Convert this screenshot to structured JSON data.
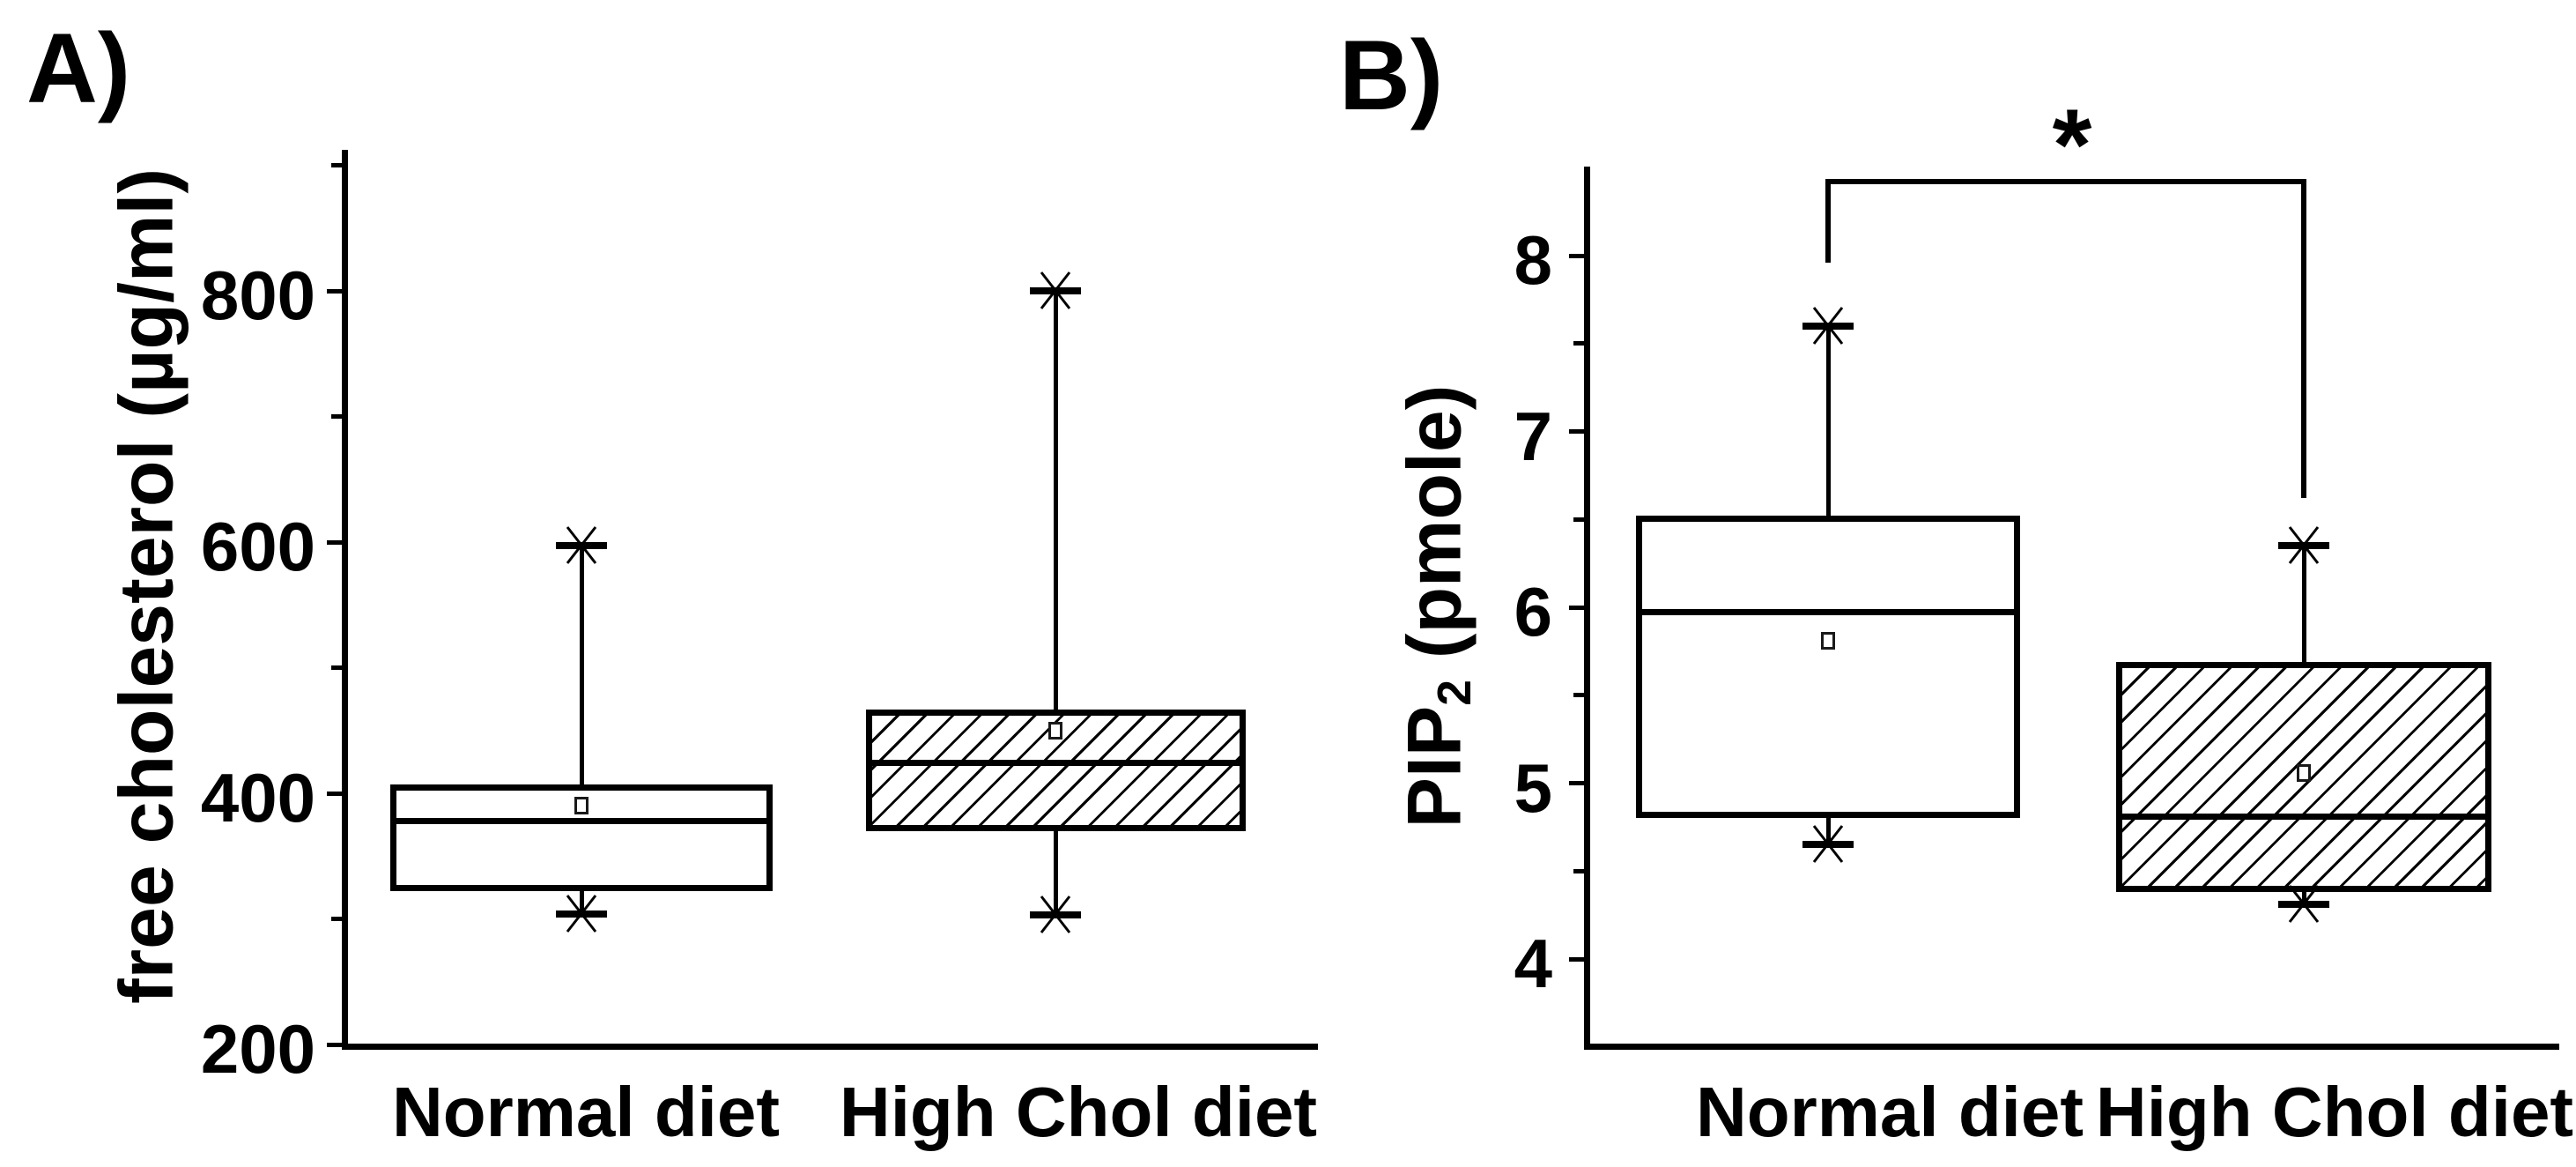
{
  "chart_data": [
    {
      "type": "box",
      "panel_label": "A)",
      "ylabel": "free cholesterol (µg/ml)",
      "ylabel_parts": {
        "pre": "free cholesterol (µg/ml)",
        "sub": "",
        "post": ""
      },
      "ylim": [
        200,
        912
      ],
      "yticks_major": [
        200,
        400,
        600,
        800
      ],
      "yticks_minor": [
        300,
        500,
        700,
        900
      ],
      "grid": false,
      "categories": [
        "Normal diet",
        "High Chol diet"
      ],
      "series": [
        {
          "category": "Normal diet",
          "hatched": false,
          "whisker_low": 304,
          "q1": 322,
          "median": 378,
          "mean": 390,
          "q3": 407,
          "whisker_high": 597
        },
        {
          "category": "High Chol diet",
          "hatched": true,
          "whisker_low": 303,
          "q1": 370,
          "median": 424,
          "mean": 450,
          "q3": 467,
          "whisker_high": 800
        }
      ]
    },
    {
      "type": "box",
      "panel_label": "B)",
      "ylabel": "PIP2 (pmole)",
      "ylabel_parts": {
        "pre": "PIP",
        "sub": "2",
        "post": " (pmole)"
      },
      "ylim": [
        3.5,
        8.5
      ],
      "yticks_major": [
        4,
        5,
        6,
        7,
        8
      ],
      "yticks_minor": [
        4.5,
        5.5,
        6.5,
        7.5
      ],
      "grid": false,
      "categories": [
        "Normal diet",
        "High Chol diet"
      ],
      "series": [
        {
          "category": "Normal diet",
          "hatched": false,
          "whisker_low": 4.65,
          "q1": 4.8,
          "median": 5.97,
          "mean": 5.81,
          "q3": 6.52,
          "whisker_high": 7.6
        },
        {
          "category": "High Chol diet",
          "hatched": true,
          "whisker_low": 4.31,
          "q1": 4.38,
          "median": 4.81,
          "mean": 5.06,
          "q3": 5.69,
          "whisker_high": 6.35
        }
      ],
      "significance": {
        "symbol": "*",
        "bar_value": 8.42,
        "left_drop_value": 7.96,
        "right_drop_value": 6.62,
        "between": [
          "Normal diet",
          "High Chol diet"
        ]
      }
    }
  ]
}
